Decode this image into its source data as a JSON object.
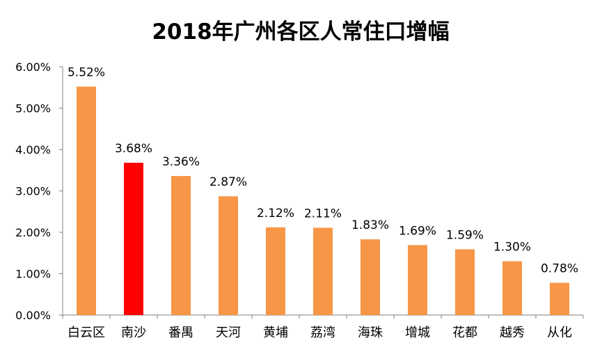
{
  "chart_data": {
    "type": "bar",
    "title": "2018年广州各区人常住口增幅",
    "categories": [
      "白云区",
      "南沙",
      "番禺",
      "天河",
      "黄埔",
      "荔湾",
      "海珠",
      "增城",
      "花都",
      "越秀",
      "从化"
    ],
    "values": [
      5.52,
      3.68,
      3.36,
      2.87,
      2.12,
      2.11,
      1.83,
      1.69,
      1.59,
      1.3,
      0.78
    ],
    "data_labels": [
      "5.52%",
      "3.68%",
      "3.36%",
      "2.87%",
      "2.12%",
      "2.11%",
      "1.83%",
      "1.69%",
      "1.59%",
      "1.30%",
      "0.78%"
    ],
    "y_ticks": [
      0,
      1,
      2,
      3,
      4,
      5,
      6
    ],
    "y_tick_labels": [
      "0.00%",
      "1.00%",
      "2.00%",
      "3.00%",
      "4.00%",
      "5.00%",
      "6.00%"
    ],
    "ylim": [
      0,
      6
    ],
    "xlabel": "",
    "ylabel": "",
    "grid": false,
    "legend": "none",
    "colors": {
      "bar": "#f79646",
      "highlight": "#ff0000",
      "axis": "#7f7f7f",
      "text": "#000000"
    },
    "highlight_index": 1
  }
}
